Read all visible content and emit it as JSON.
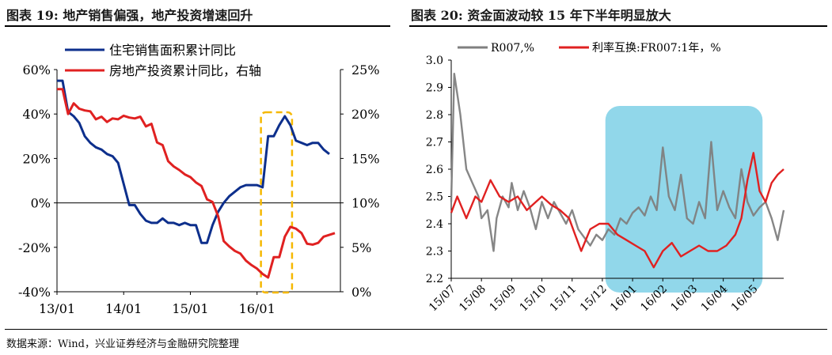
{
  "title_left": "图表 19:  地产销售偏强，地产投资增速回升",
  "title_right": "图表 20:  资金面波动较 15 年下半年明显放大",
  "source": "数据来源：Wind，兴业证券经济与金融研究院整理",
  "colors": {
    "navy": "#0d2f8c",
    "red": "#e02121",
    "gray": "#7f7f7f",
    "highlight": "#7ed0e6",
    "dash": "#f5b800"
  },
  "chart_data": [
    {
      "type": "line",
      "title": "地产销售偏强，地产投资增速回升",
      "x_ticks": [
        "13/01",
        "14/01",
        "15/01",
        "16/01"
      ],
      "y_left": {
        "range": [
          -40,
          60
        ],
        "ticks": [
          "60%",
          "40%",
          "20%",
          "0%",
          "-20%",
          "-40%"
        ]
      },
      "y_right": {
        "range": [
          0,
          25
        ],
        "ticks": [
          "25%",
          "20%",
          "15%",
          "10%",
          "5%",
          "0%"
        ]
      },
      "legend": [
        "住宅销售面积累计同比",
        "房地产投资累计同比，右轴"
      ],
      "x_month_index_note": "x in months since 13/01",
      "series": [
        {
          "name": "住宅销售面积累计同比",
          "axis": "left",
          "color": "#0d2f8c",
          "points": [
            [
              0,
              55
            ],
            [
              1,
              55
            ],
            [
              2,
              41
            ],
            [
              3,
              39
            ],
            [
              4,
              36
            ],
            [
              5,
              30
            ],
            [
              6,
              27
            ],
            [
              7,
              25
            ],
            [
              8,
              24
            ],
            [
              9,
              22
            ],
            [
              10,
              21
            ],
            [
              11,
              18
            ],
            [
              13,
              -1
            ],
            [
              14,
              -1
            ],
            [
              15,
              -5
            ],
            [
              16,
              -8
            ],
            [
              17,
              -9
            ],
            [
              18,
              -9
            ],
            [
              19,
              -7
            ],
            [
              20,
              -9
            ],
            [
              21,
              -9
            ],
            [
              22,
              -10
            ],
            [
              23,
              -9
            ],
            [
              24,
              -10
            ],
            [
              25,
              -10
            ],
            [
              26,
              -18
            ],
            [
              27,
              -18
            ],
            [
              28,
              -10
            ],
            [
              29,
              -4
            ],
            [
              30,
              0
            ],
            [
              31,
              3
            ],
            [
              32,
              5
            ],
            [
              33,
              7
            ],
            [
              34,
              8
            ],
            [
              35,
              8
            ],
            [
              36,
              8
            ],
            [
              37,
              7
            ],
            [
              38,
              30
            ],
            [
              39,
              30
            ],
            [
              40,
              35
            ],
            [
              41,
              39
            ],
            [
              42,
              35
            ],
            [
              43,
              28
            ],
            [
              44,
              27
            ],
            [
              45,
              26
            ],
            [
              46,
              27
            ],
            [
              47,
              27
            ],
            [
              48,
              24
            ],
            [
              49,
              22
            ]
          ]
        },
        {
          "name": "房地产投资累计同比，右轴",
          "axis": "right",
          "color": "#e02121",
          "points": [
            [
              0,
              22.8
            ],
            [
              1,
              22.8
            ],
            [
              2,
              20.0
            ],
            [
              3,
              21.2
            ],
            [
              4,
              20.6
            ],
            [
              5,
              20.4
            ],
            [
              6,
              20.3
            ],
            [
              7,
              19.4
            ],
            [
              8,
              19.7
            ],
            [
              9,
              19.1
            ],
            [
              10,
              19.5
            ],
            [
              11,
              19.4
            ],
            [
              12,
              19.8
            ],
            [
              13,
              19.6
            ],
            [
              14,
              19.5
            ],
            [
              15,
              19.7
            ],
            [
              16,
              18.6
            ],
            [
              17,
              18.9
            ],
            [
              18,
              16.8
            ],
            [
              19,
              16.5
            ],
            [
              20,
              14.7
            ],
            [
              21,
              14.1
            ],
            [
              22,
              13.7
            ],
            [
              23,
              13.2
            ],
            [
              24,
              12.9
            ],
            [
              25,
              12.3
            ],
            [
              26,
              11.9
            ],
            [
              27,
              10.4
            ],
            [
              28,
              10.1
            ],
            [
              29,
              8.5
            ],
            [
              30,
              5.7
            ],
            [
              31,
              5.1
            ],
            [
              32,
              4.6
            ],
            [
              33,
              4.3
            ],
            [
              34,
              3.5
            ],
            [
              35,
              3.0
            ],
            [
              36,
              2.6
            ],
            [
              37,
              2.0
            ],
            [
              38,
              1.6
            ],
            [
              39,
              3.9
            ],
            [
              40,
              3.9
            ],
            [
              41,
              6.2
            ],
            [
              42,
              7.3
            ],
            [
              43,
              7.1
            ],
            [
              44,
              6.6
            ],
            [
              45,
              5.4
            ],
            [
              46,
              5.3
            ],
            [
              47,
              5.5
            ],
            [
              48,
              6.2
            ],
            [
              49,
              6.4
            ],
            [
              50,
              6.6
            ]
          ]
        }
      ]
    },
    {
      "type": "line",
      "title": "资金面波动较 15 年下半年明显放大",
      "x_ticks": [
        "15/07",
        "15/08",
        "15/09",
        "15/10",
        "15/11",
        "15/12",
        "16/01",
        "16/02",
        "16/03",
        "16/04",
        "16/05"
      ],
      "y_left": {
        "range": [
          2.2,
          3.0
        ],
        "ticks": [
          "3.0",
          "2.9",
          "2.8",
          "2.7",
          "2.6",
          "2.5",
          "2.4",
          "2.3",
          "2.2"
        ]
      },
      "legend": [
        "R007,%",
        "利率互换:FR007:1年，%"
      ],
      "highlight_range": [
        "15/12",
        "16/05"
      ],
      "series": [
        {
          "name": "R007,%",
          "color": "#7f7f7f",
          "points": [
            [
              0,
              2.48
            ],
            [
              0.1,
              2.95
            ],
            [
              0.3,
              2.8
            ],
            [
              0.5,
              2.6
            ],
            [
              0.7,
              2.55
            ],
            [
              0.9,
              2.5
            ],
            [
              1.0,
              2.42
            ],
            [
              1.2,
              2.45
            ],
            [
              1.4,
              2.3
            ],
            [
              1.5,
              2.42
            ],
            [
              1.7,
              2.5
            ],
            [
              1.9,
              2.46
            ],
            [
              2.0,
              2.55
            ],
            [
              2.2,
              2.45
            ],
            [
              2.4,
              2.52
            ],
            [
              2.6,
              2.46
            ],
            [
              2.8,
              2.38
            ],
            [
              3.0,
              2.48
            ],
            [
              3.2,
              2.42
            ],
            [
              3.4,
              2.48
            ],
            [
              3.6,
              2.44
            ],
            [
              3.8,
              2.4
            ],
            [
              4.0,
              2.45
            ],
            [
              4.2,
              2.38
            ],
            [
              4.4,
              2.35
            ],
            [
              4.6,
              2.32
            ],
            [
              4.8,
              2.36
            ],
            [
              5.0,
              2.34
            ],
            [
              5.2,
              2.38
            ],
            [
              5.4,
              2.36
            ],
            [
              5.6,
              2.42
            ],
            [
              5.8,
              2.4
            ],
            [
              6.0,
              2.44
            ],
            [
              6.2,
              2.46
            ],
            [
              6.4,
              2.43
            ],
            [
              6.6,
              2.5
            ],
            [
              6.8,
              2.45
            ],
            [
              7.0,
              2.68
            ],
            [
              7.2,
              2.5
            ],
            [
              7.4,
              2.45
            ],
            [
              7.6,
              2.58
            ],
            [
              7.8,
              2.42
            ],
            [
              8.0,
              2.4
            ],
            [
              8.2,
              2.48
            ],
            [
              8.4,
              2.42
            ],
            [
              8.6,
              2.7
            ],
            [
              8.8,
              2.45
            ],
            [
              9.0,
              2.52
            ],
            [
              9.2,
              2.46
            ],
            [
              9.4,
              2.42
            ],
            [
              9.6,
              2.6
            ],
            [
              9.8,
              2.48
            ],
            [
              10.0,
              2.43
            ],
            [
              10.2,
              2.46
            ],
            [
              10.4,
              2.48
            ],
            [
              10.6,
              2.42
            ],
            [
              10.8,
              2.34
            ],
            [
              11.0,
              2.45
            ]
          ]
        },
        {
          "name": "利率互换:FR007:1年，%",
          "color": "#e02121",
          "points": [
            [
              0,
              2.44
            ],
            [
              0.2,
              2.5
            ],
            [
              0.5,
              2.42
            ],
            [
              0.8,
              2.5
            ],
            [
              1.0,
              2.48
            ],
            [
              1.3,
              2.56
            ],
            [
              1.6,
              2.5
            ],
            [
              1.9,
              2.48
            ],
            [
              2.2,
              2.5
            ],
            [
              2.5,
              2.45
            ],
            [
              2.8,
              2.48
            ],
            [
              3.0,
              2.5
            ],
            [
              3.3,
              2.47
            ],
            [
              3.6,
              2.45
            ],
            [
              3.9,
              2.42
            ],
            [
              4.1,
              2.36
            ],
            [
              4.3,
              2.3
            ],
            [
              4.6,
              2.38
            ],
            [
              4.9,
              2.4
            ],
            [
              5.2,
              2.4
            ],
            [
              5.5,
              2.36
            ],
            [
              5.8,
              2.34
            ],
            [
              6.1,
              2.32
            ],
            [
              6.4,
              2.3
            ],
            [
              6.7,
              2.24
            ],
            [
              7.0,
              2.3
            ],
            [
              7.3,
              2.33
            ],
            [
              7.6,
              2.28
            ],
            [
              7.9,
              2.3
            ],
            [
              8.2,
              2.32
            ],
            [
              8.5,
              2.3
            ],
            [
              8.8,
              2.3
            ],
            [
              9.1,
              2.32
            ],
            [
              9.4,
              2.36
            ],
            [
              9.6,
              2.42
            ],
            [
              9.8,
              2.56
            ],
            [
              10.0,
              2.66
            ],
            [
              10.2,
              2.52
            ],
            [
              10.4,
              2.48
            ],
            [
              10.6,
              2.55
            ],
            [
              10.8,
              2.58
            ],
            [
              11.0,
              2.6
            ]
          ]
        }
      ]
    }
  ]
}
